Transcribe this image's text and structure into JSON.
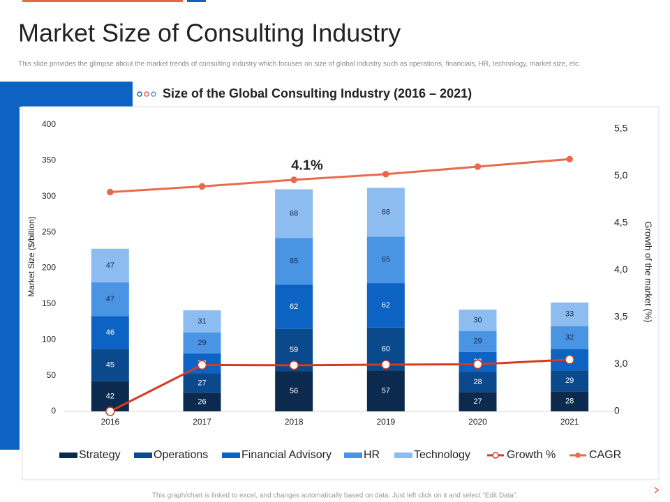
{
  "header": {
    "title": "Market Size of Consulting Industry",
    "subtitle": "This slide provides the glimpse about the market trends of consulting industry which focuses on size of global industry such as operations, financials, HR, technology, market size, etc."
  },
  "chart_data": {
    "type": "bar",
    "stacked": true,
    "title": "Size of the Global Consulting Industry (2016 – 2021)",
    "ylabel": "Market Size ($/billion)",
    "y2label": "Growth of the market (%)",
    "annotations": [
      "4.1%"
    ],
    "categories": [
      "2016",
      "2017",
      "2018",
      "2019",
      "2020",
      "2021"
    ],
    "series": [
      {
        "name": "Strategy",
        "color": "#0b2a4e",
        "values": [
          42,
          26,
          56,
          57,
          27,
          28
        ]
      },
      {
        "name": "Operations",
        "color": "#0a4a8c",
        "values": [
          45,
          27,
          59,
          60,
          28,
          29
        ]
      },
      {
        "name": "Financial Advisory",
        "color": "#0d63c4",
        "values": [
          46,
          28,
          62,
          62,
          28,
          30
        ]
      },
      {
        "name": "HR",
        "color": "#4a94e4",
        "values": [
          47,
          29,
          65,
          65,
          29,
          32
        ]
      },
      {
        "name": "Technology",
        "color": "#8cbcf0",
        "values": [
          47,
          31,
          68,
          68,
          30,
          33
        ]
      },
      {
        "name": "Growth %",
        "type": "line",
        "axis": "y2",
        "color": "#d63a1f",
        "values": [
          0,
          2.96,
          2.94,
          2.98,
          3.0,
          3.05
        ]
      },
      {
        "name": "CAGR",
        "type": "line",
        "axis": "y2",
        "color": "#e86a4a",
        "values": [
          4.83,
          4.89,
          4.96,
          5.02,
          5.1,
          5.18
        ]
      }
    ],
    "ylim": [
      0,
      400
    ],
    "yticks": [
      0,
      50,
      100,
      150,
      200,
      250,
      300,
      350,
      400
    ],
    "y2lim": [
      0,
      5.5
    ],
    "y2ticks": [
      0,
      {
        "value": 3.0,
        "label": "3,0"
      },
      {
        "value": 3.5,
        "label": "3,5"
      },
      {
        "value": 4.0,
        "label": "4,0"
      },
      {
        "value": 4.5,
        "label": "4,5"
      },
      {
        "value": 5.0,
        "label": "5,0"
      },
      {
        "value": 5.5,
        "label": "5,5"
      }
    ],
    "grid": false
  },
  "footer": "This graph/chart is linked to excel, and changes automatically based on data. Just left click on it and select “Edit Data”."
}
